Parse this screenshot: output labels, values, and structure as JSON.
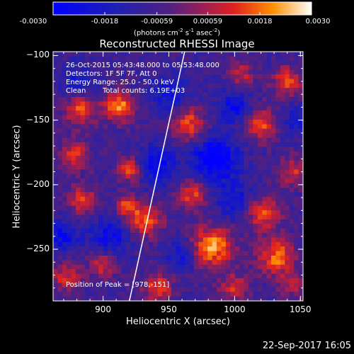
{
  "chart_data": {
    "type": "heatmap",
    "title": "Reconstructed RHESSI Image",
    "xlabel": "Heliocentric X (arcsec)",
    "ylabel": "Heliocentric Y (arcsec)",
    "xlim": [
      862,
      1052
    ],
    "ylim": [
      -290,
      -97
    ],
    "xticks": [
      900,
      950,
      1000,
      1050
    ],
    "yticks": [
      -100,
      -150,
      -200,
      -250
    ],
    "colorbar": {
      "min": -0.003,
      "max": 0.003,
      "tick_labels": [
        "-0.0030",
        "-0.0018",
        "-0.00059",
        "0.00059",
        "0.0018",
        "0.0030"
      ],
      "tick_values": [
        -0.003,
        -0.0018,
        -0.00059,
        0.00059,
        0.0018,
        0.003
      ],
      "unit_prefix": "(photons cm",
      "unit_sup1": "-2",
      "unit_mid1": " s",
      "unit_sup2": "-1",
      "unit_mid2": " asec",
      "unit_sup3": "-2",
      "unit_suffix": ")"
    },
    "sources": [
      {
        "x": 983,
        "y": -248,
        "amp": 1.0,
        "w": 11
      },
      {
        "x": 1032,
        "y": -256,
        "amp": 0.85,
        "w": 10
      },
      {
        "x": 1022,
        "y": -222,
        "amp": 0.8,
        "w": 9
      },
      {
        "x": 932,
        "y": -227,
        "amp": 0.82,
        "w": 9
      },
      {
        "x": 968,
        "y": -208,
        "amp": 0.7,
        "w": 8
      },
      {
        "x": 883,
        "y": -142,
        "amp": 0.72,
        "w": 9
      },
      {
        "x": 878,
        "y": -177,
        "amp": 0.68,
        "w": 8
      },
      {
        "x": 884,
        "y": -212,
        "amp": 0.66,
        "w": 8
      },
      {
        "x": 912,
        "y": -140,
        "amp": 0.95,
        "w": 8
      },
      {
        "x": 918,
        "y": -216,
        "amp": 0.7,
        "w": 6
      },
      {
        "x": 965,
        "y": -153,
        "amp": 0.78,
        "w": 9
      },
      {
        "x": 1020,
        "y": -153,
        "amp": 0.72,
        "w": 9
      },
      {
        "x": 1040,
        "y": -120,
        "amp": 0.72,
        "w": 8
      },
      {
        "x": 1045,
        "y": -190,
        "amp": 0.6,
        "w": 8
      },
      {
        "x": 1005,
        "y": -115,
        "amp": 0.55,
        "w": 7
      },
      {
        "x": 872,
        "y": -272,
        "amp": 0.6,
        "w": 8
      },
      {
        "x": 900,
        "y": -262,
        "amp": 0.65,
        "w": 7
      },
      {
        "x": 942,
        "y": -280,
        "amp": 0.75,
        "w": 8
      },
      {
        "x": 1000,
        "y": -280,
        "amp": 0.6,
        "w": 8
      },
      {
        "x": 1045,
        "y": -278,
        "amp": 0.5,
        "w": 7
      },
      {
        "x": 920,
        "y": -188,
        "amp": 0.78,
        "w": 7
      },
      {
        "x": 985,
        "y": -180,
        "amp": -0.9,
        "w": 12
      },
      {
        "x": 940,
        "y": -185,
        "amp": -0.7,
        "w": 10
      },
      {
        "x": 905,
        "y": -240,
        "amp": -0.6,
        "w": 10
      },
      {
        "x": 1000,
        "y": -212,
        "amp": -0.5,
        "w": 10
      },
      {
        "x": 880,
        "y": -120,
        "amp": -0.4,
        "w": 9
      },
      {
        "x": 950,
        "y": -130,
        "amp": -0.5,
        "w": 10
      },
      {
        "x": 1000,
        "y": -140,
        "amp": -0.6,
        "w": 9
      },
      {
        "x": 870,
        "y": -240,
        "amp": -0.6,
        "w": 8
      },
      {
        "x": 960,
        "y": -255,
        "amp": -0.5,
        "w": 8
      },
      {
        "x": 1048,
        "y": -150,
        "amp": -0.4,
        "w": 8
      }
    ],
    "limb_line": {
      "x": [
        920,
        962
      ],
      "y": [
        -290,
        -97
      ]
    },
    "annotations": {
      "time": "26-Oct-2015 05:43:48.000 to 05:53:48.000",
      "detectors": "Detectors: 1F 5F 7F, Att 0",
      "energy": "Energy Range: 25.0 - 50.0 keV",
      "method": "Clean",
      "counts": "Total counts: 6.19E+03",
      "peak": "Position of Peak = [978,-151]"
    }
  },
  "footer": {
    "timestamp": "22-Sep-2017 16:05"
  }
}
